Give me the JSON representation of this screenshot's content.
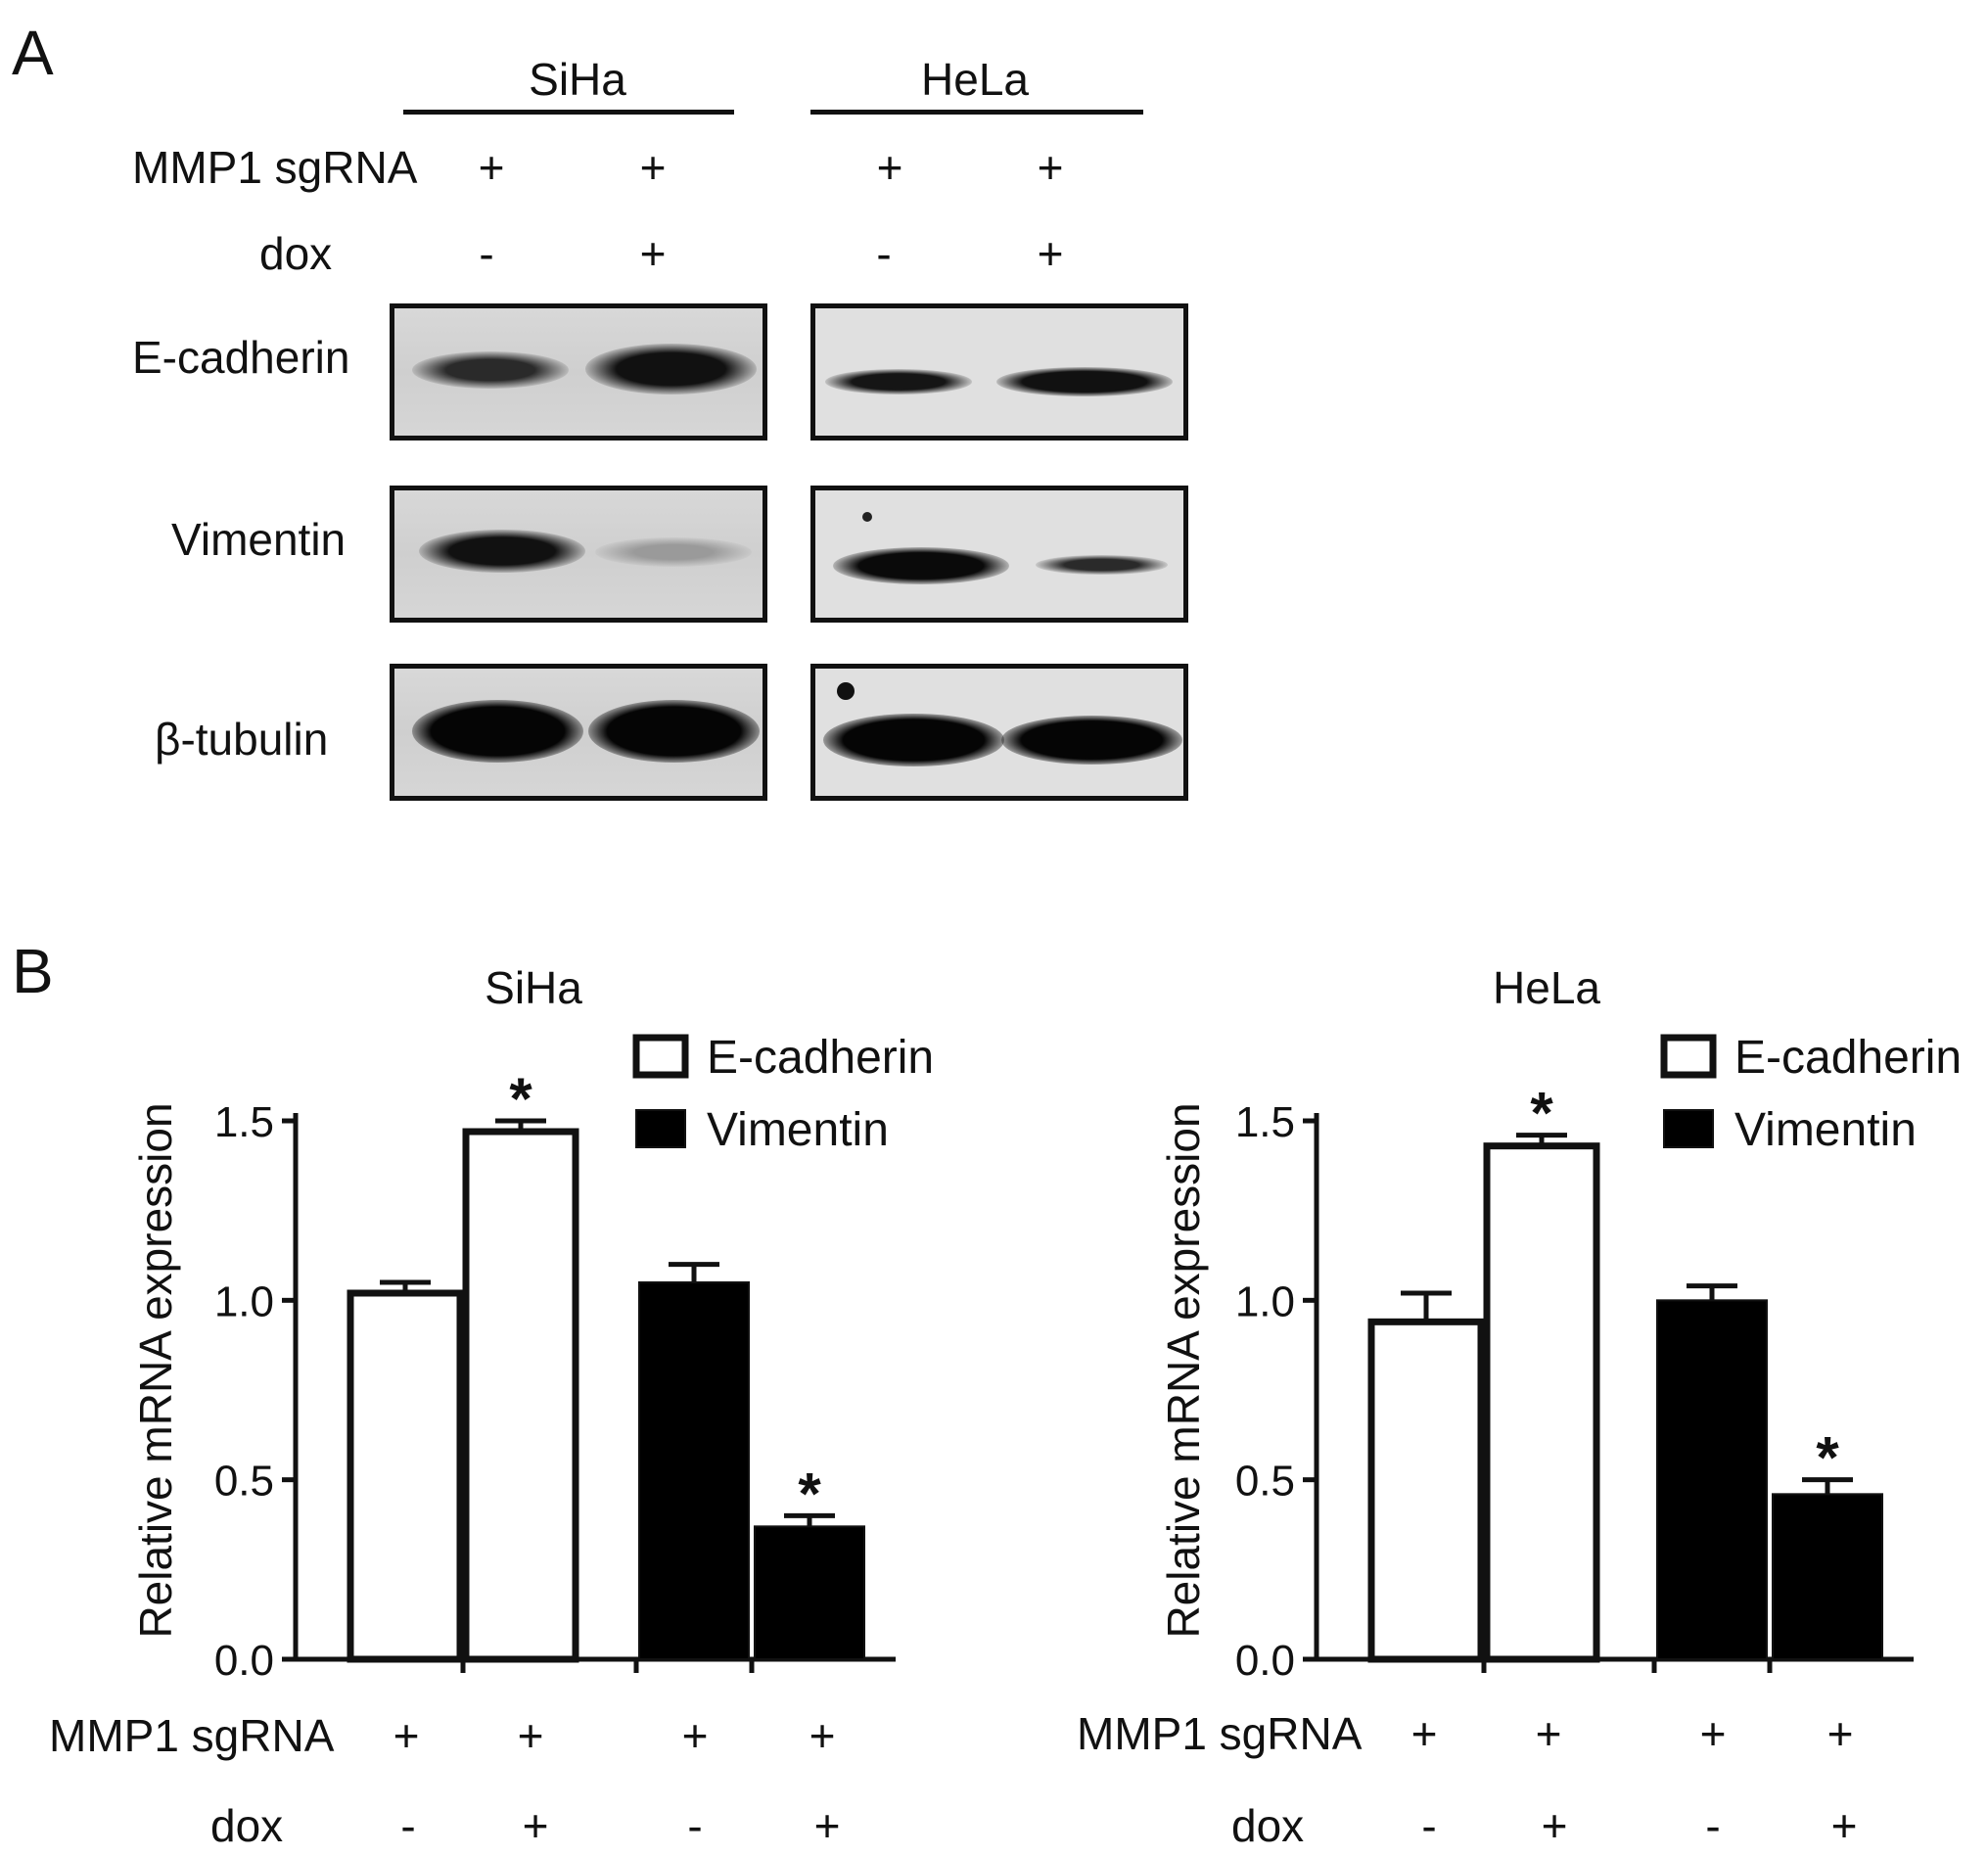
{
  "panelA": {
    "letter": "A",
    "cell_lines": [
      "SiHa",
      "HeLa"
    ],
    "sgrna_label": "MMP1 sgRNA",
    "dox_label": "dox",
    "sgrna_signs": [
      "+",
      "+",
      "+",
      "+"
    ],
    "dox_signs": [
      "-",
      "+",
      "-",
      "+"
    ],
    "proteins": [
      "E-cadherin",
      "Vimentin",
      "β-tubulin"
    ]
  },
  "panelB": {
    "letter": "B",
    "sgrna_label": "MMP1 sgRNA",
    "dox_label": "dox",
    "sgrna_signs": [
      "+",
      "+",
      "+",
      "+"
    ],
    "dox_signs": [
      "-",
      "+",
      "-",
      "+"
    ]
  },
  "chart_data": [
    {
      "type": "bar",
      "title": "SiHa",
      "ylabel": "Relative mRNA expression",
      "ylim": [
        0,
        1.5
      ],
      "yticks": [
        "0.0",
        "0.5",
        "1.0",
        "1.5"
      ],
      "legend_position": "top-right",
      "series": [
        {
          "name": "E-cadherin",
          "color": "#ffffff",
          "values": [
            1.02,
            1.47
          ],
          "errors": [
            0.03,
            0.03
          ],
          "significant": [
            false,
            true
          ]
        },
        {
          "name": "Vimentin",
          "color": "#000000",
          "values": [
            1.05,
            0.37
          ],
          "errors": [
            0.05,
            0.03
          ],
          "significant": [
            false,
            true
          ]
        }
      ],
      "significance_mark": "*"
    },
    {
      "type": "bar",
      "title": "HeLa",
      "ylabel": "Relative mRNA expression",
      "ylim": [
        0,
        1.5
      ],
      "yticks": [
        "0.0",
        "0.5",
        "1.0",
        "1.5"
      ],
      "legend_position": "top-right",
      "series": [
        {
          "name": "E-cadherin",
          "color": "#ffffff",
          "values": [
            0.94,
            1.43
          ],
          "errors": [
            0.08,
            0.03
          ],
          "significant": [
            false,
            true
          ]
        },
        {
          "name": "Vimentin",
          "color": "#000000",
          "values": [
            1.0,
            0.46
          ],
          "errors": [
            0.04,
            0.04
          ],
          "significant": [
            false,
            true
          ]
        }
      ],
      "significance_mark": "*"
    }
  ]
}
